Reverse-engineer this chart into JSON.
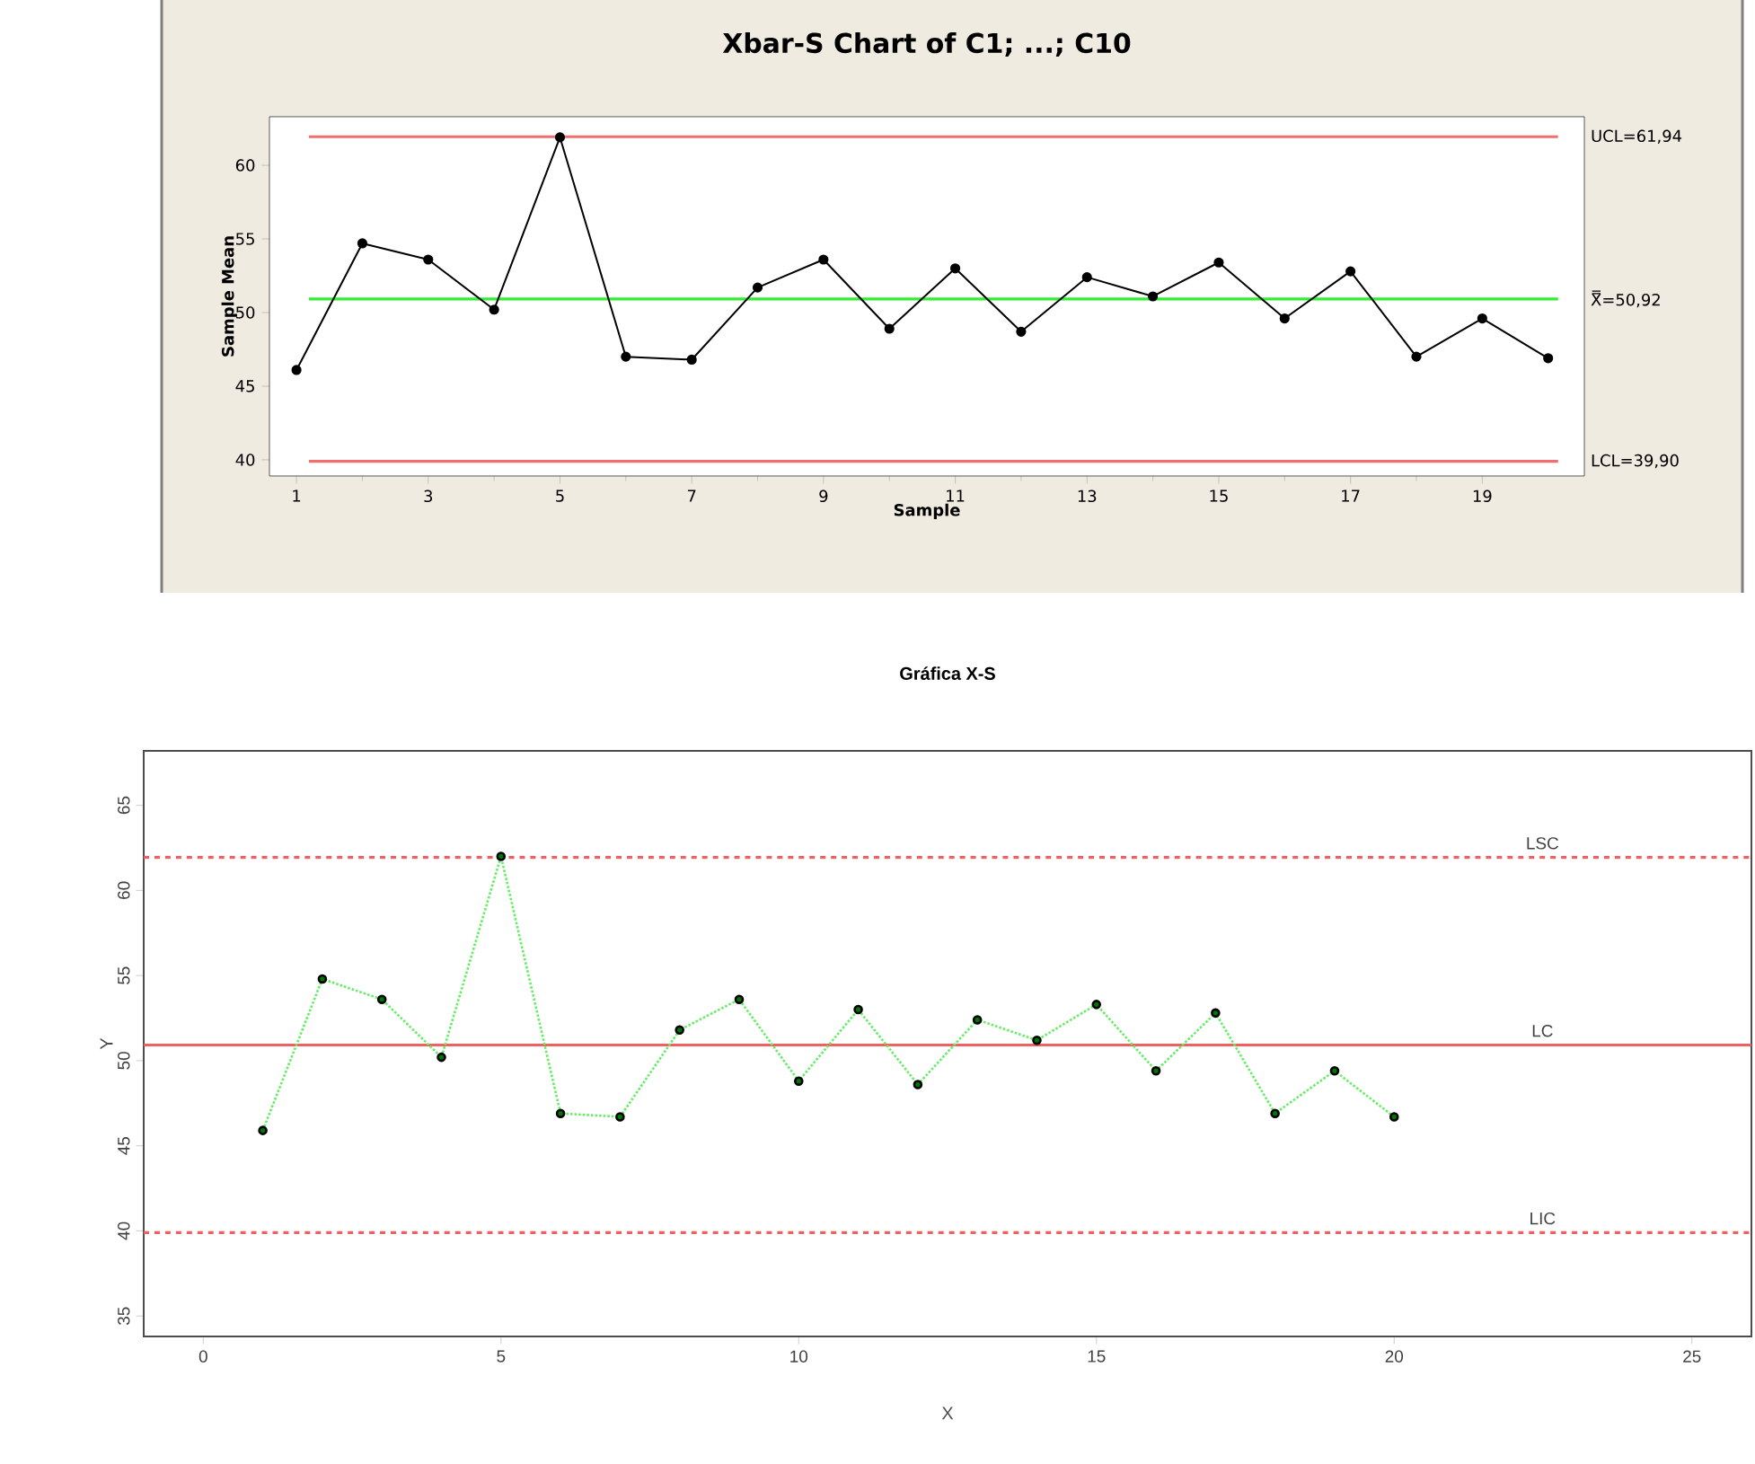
{
  "chart_data": [
    {
      "type": "line",
      "title": "Xbar-S Chart of C1; ...; C10",
      "xlabel": "Sample",
      "ylabel": "Sample Mean",
      "x": [
        1,
        2,
        3,
        4,
        5,
        6,
        7,
        8,
        9,
        10,
        11,
        12,
        13,
        14,
        15,
        16,
        17,
        18,
        19,
        20
      ],
      "series": [
        {
          "color": "#000000",
          "values": [
            46.1,
            54.7,
            53.6,
            50.2,
            61.9,
            47.0,
            46.8,
            51.7,
            53.6,
            48.9,
            53.0,
            48.7,
            52.4,
            51.1,
            53.4,
            49.6,
            52.8,
            47.0,
            49.6,
            46.9
          ]
        }
      ],
      "xlim": [
        0.59,
        20.55
      ],
      "ylim": [
        38.9,
        63.3
      ],
      "xticks": [
        1,
        3,
        5,
        7,
        9,
        11,
        13,
        15,
        17,
        19
      ],
      "yticks": [
        40,
        45,
        50,
        55,
        60
      ],
      "marker": "circle",
      "line_style": "solid",
      "ref_lines": [
        {
          "axis": "y",
          "value": 61.94,
          "label": "UCL=61,94",
          "color": "#f07070",
          "line_style": "solid"
        },
        {
          "axis": "y",
          "value": 50.92,
          "label": "X̿=50,92",
          "color": "#33ee33",
          "line_style": "solid"
        },
        {
          "axis": "y",
          "value": 39.9,
          "label": "LCL=39,90",
          "color": "#f07070",
          "line_style": "solid"
        }
      ]
    },
    {
      "type": "line",
      "title": "Gráfica X-S",
      "xlabel": "X",
      "ylabel": "Y",
      "x": [
        1,
        2,
        3,
        4,
        5,
        6,
        7,
        8,
        9,
        10,
        11,
        12,
        13,
        14,
        15,
        16,
        17,
        18,
        19,
        20
      ],
      "series": [
        {
          "color": "#66ee66",
          "values": [
            45.9,
            54.8,
            53.6,
            50.2,
            62.0,
            46.9,
            46.7,
            51.8,
            53.6,
            48.8,
            53.0,
            48.6,
            52.4,
            51.2,
            53.3,
            49.4,
            52.8,
            46.9,
            49.4,
            46.7
          ]
        }
      ],
      "xlim": [
        -1,
        26
      ],
      "ylim": [
        33.8,
        68.2
      ],
      "xticks": [
        0,
        5,
        10,
        15,
        20,
        25
      ],
      "yticks": [
        35,
        40,
        45,
        50,
        55,
        60,
        65
      ],
      "marker": "circle",
      "line_style": "dotted",
      "ref_lines": [
        {
          "axis": "y",
          "value": 61.94,
          "label": "LSC",
          "color": "#f06060",
          "line_style": "dashed"
        },
        {
          "axis": "y",
          "value": 50.92,
          "label": "LC",
          "color": "#f06060",
          "line_style": "solid"
        },
        {
          "axis": "y",
          "value": 39.9,
          "label": "LIC",
          "color": "#f06060",
          "line_style": "dashed"
        }
      ]
    }
  ]
}
